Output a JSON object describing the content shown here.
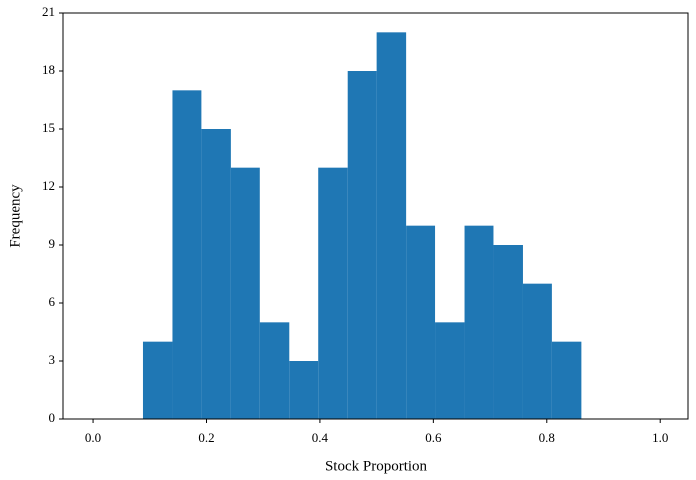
{
  "chart_data": {
    "type": "histogram",
    "x_label": "Stock Proportion",
    "y_label": "Frequency",
    "bins": [
      0.088,
      0.14,
      0.191,
      0.243,
      0.294,
      0.346,
      0.397,
      0.449,
      0.5,
      0.552,
      0.603,
      0.655,
      0.706,
      0.758,
      0.809,
      0.861
    ],
    "values": [
      4,
      17,
      15,
      13,
      5,
      3,
      13,
      18,
      20,
      10,
      5,
      10,
      9,
      7,
      4
    ],
    "color": "#1f77b4",
    "xlim": [
      -0.053,
      1.049
    ],
    "xticks": [
      {
        "value": 0,
        "label": "0.0"
      },
      0.2,
      0.4,
      0.6,
      0.8,
      {
        "value": 1,
        "label": "1.0"
      }
    ],
    "ylim": [
      0,
      21
    ],
    "yticks": [
      0,
      3,
      6,
      9,
      12,
      15,
      18,
      21
    ],
    "grid": false
  }
}
